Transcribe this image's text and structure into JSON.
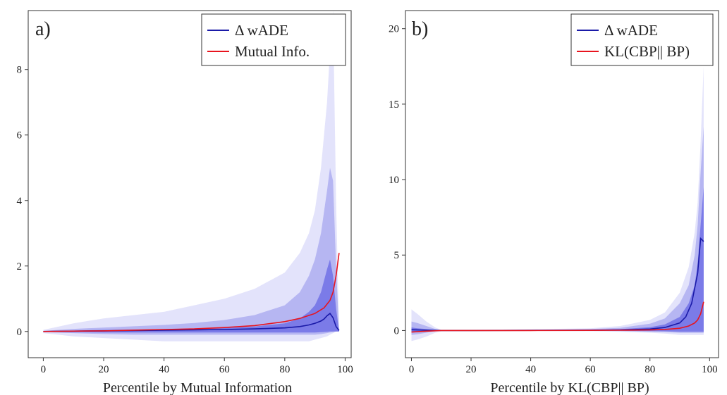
{
  "chart_data": [
    {
      "type": "area",
      "panel_label": "a)",
      "title": "",
      "xlabel": "Percentile by Mutual Information",
      "ylabel": "",
      "xlim": [
        -5,
        102
      ],
      "ylim": [
        -0.8,
        9.8
      ],
      "xticks": [
        0,
        20,
        40,
        60,
        80,
        100
      ],
      "xtick_labels": [
        "0",
        "20",
        "40",
        "60",
        "80",
        "100"
      ],
      "yticks": [
        0,
        2,
        4,
        6,
        8
      ],
      "ytick_labels": [
        "0",
        "2",
        "4",
        "6",
        "8"
      ],
      "grid": false,
      "legend": {
        "position": "top-right",
        "entries": [
          "Δ wADE",
          "Mutual Info."
        ]
      },
      "x": [
        0,
        10,
        20,
        30,
        40,
        50,
        60,
        70,
        80,
        85,
        88,
        90,
        92,
        94,
        95,
        96,
        97,
        98
      ],
      "bands": [
        {
          "level": "outer",
          "color": "#e3e3fb",
          "lower": [
            -0.05,
            -0.15,
            -0.2,
            -0.25,
            -0.3,
            -0.3,
            -0.3,
            -0.3,
            -0.3,
            -0.3,
            -0.3,
            -0.25,
            -0.2,
            -0.15,
            -0.1,
            -0.05,
            0,
            0
          ],
          "upper": [
            0.05,
            0.25,
            0.4,
            0.5,
            0.6,
            0.8,
            1.0,
            1.3,
            1.8,
            2.4,
            3.0,
            3.7,
            5.0,
            7.0,
            8.6,
            9.8,
            4.0,
            0
          ]
        },
        {
          "level": "middle",
          "color": "#b6b6f2",
          "lower": [
            -0.02,
            -0.05,
            -0.08,
            -0.1,
            -0.1,
            -0.1,
            -0.1,
            -0.1,
            -0.1,
            -0.1,
            -0.1,
            -0.1,
            -0.08,
            -0.05,
            -0.03,
            -0.02,
            0,
            0
          ],
          "upper": [
            0.02,
            0.08,
            0.12,
            0.16,
            0.2,
            0.26,
            0.35,
            0.5,
            0.8,
            1.2,
            1.7,
            2.2,
            3.0,
            4.3,
            5.0,
            4.6,
            2.0,
            0
          ]
        },
        {
          "level": "inner",
          "color": "#7b7be8",
          "lower": [
            -0.01,
            -0.02,
            -0.03,
            -0.03,
            -0.03,
            -0.03,
            -0.03,
            -0.03,
            -0.03,
            -0.03,
            -0.03,
            -0.03,
            -0.02,
            -0.01,
            0,
            0,
            0,
            0
          ],
          "upper": [
            0.01,
            0.03,
            0.05,
            0.06,
            0.07,
            0.09,
            0.11,
            0.15,
            0.25,
            0.4,
            0.6,
            0.8,
            1.2,
            1.9,
            2.2,
            1.7,
            0.7,
            0
          ]
        }
      ],
      "series": [
        {
          "name": "Δ wADE",
          "color": "#1a1aa8",
          "x": [
            0,
            10,
            20,
            30,
            40,
            50,
            60,
            70,
            80,
            85,
            88,
            90,
            92,
            93,
            94,
            95,
            96,
            97,
            98
          ],
          "values": [
            0,
            0.01,
            0.02,
            0.03,
            0.04,
            0.05,
            0.06,
            0.08,
            0.11,
            0.15,
            0.2,
            0.25,
            0.32,
            0.38,
            0.48,
            0.55,
            0.42,
            0.15,
            0.03
          ]
        },
        {
          "name": "Mutual Info.",
          "color": "#e8141e",
          "x": [
            0,
            10,
            20,
            30,
            40,
            50,
            60,
            70,
            80,
            85,
            90,
            93,
            95,
            96,
            97,
            98
          ],
          "values": [
            0,
            0.01,
            0.02,
            0.04,
            0.06,
            0.08,
            0.12,
            0.18,
            0.3,
            0.4,
            0.55,
            0.72,
            0.95,
            1.2,
            1.7,
            2.4
          ]
        }
      ]
    },
    {
      "type": "area",
      "panel_label": "b)",
      "title": "",
      "xlabel": "Percentile by KL(CBP|| BP)",
      "ylabel": "",
      "xlim": [
        -2,
        103
      ],
      "ylim": [
        -1.8,
        21.2
      ],
      "xticks": [
        0,
        20,
        40,
        60,
        80,
        100
      ],
      "xtick_labels": [
        "0",
        "20",
        "40",
        "60",
        "80",
        "100"
      ],
      "yticks": [
        0,
        5,
        10,
        15,
        20
      ],
      "ytick_labels": [
        "0",
        "5",
        "10",
        "15",
        "20"
      ],
      "grid": false,
      "legend": {
        "position": "top-right",
        "entries": [
          "Δ wADE",
          "KL(CBP|| BP)"
        ]
      },
      "x": [
        0,
        2,
        5,
        8,
        10,
        20,
        40,
        60,
        70,
        80,
        85,
        90,
        93,
        95,
        96,
        97,
        98
      ],
      "bands": [
        {
          "level": "outer",
          "color": "#e3e3fb",
          "lower": [
            -0.7,
            -0.6,
            -0.4,
            -0.15,
            -0.05,
            -0.03,
            -0.03,
            -0.05,
            -0.08,
            -0.15,
            -0.2,
            -0.3,
            -0.3,
            -0.3,
            -0.3,
            -0.3,
            -0.3
          ],
          "upper": [
            1.4,
            1.1,
            0.6,
            0.2,
            0.05,
            0.05,
            0.08,
            0.15,
            0.3,
            0.7,
            1.2,
            2.5,
            4.2,
            6.5,
            8.5,
            12.5,
            17.5
          ]
        },
        {
          "level": "middle",
          "color": "#b6b6f2",
          "lower": [
            -0.3,
            -0.25,
            -0.15,
            -0.05,
            -0.02,
            -0.01,
            -0.01,
            -0.02,
            -0.04,
            -0.08,
            -0.1,
            -0.15,
            -0.15,
            -0.15,
            -0.15,
            -0.15,
            -0.15
          ],
          "upper": [
            0.6,
            0.5,
            0.3,
            0.1,
            0.03,
            0.03,
            0.05,
            0.1,
            0.18,
            0.45,
            0.8,
            1.8,
            3.0,
            5.0,
            7.0,
            10.5,
            13.5
          ]
        },
        {
          "level": "inner",
          "color": "#7b7be8",
          "lower": [
            -0.1,
            -0.08,
            -0.05,
            -0.02,
            -0.01,
            -0.005,
            -0.005,
            -0.01,
            -0.02,
            -0.04,
            -0.05,
            -0.08,
            -0.08,
            -0.08,
            -0.08,
            -0.08,
            -0.08
          ],
          "upper": [
            0.2,
            0.15,
            0.1,
            0.04,
            0.015,
            0.015,
            0.025,
            0.05,
            0.09,
            0.22,
            0.4,
            0.9,
            1.8,
            3.0,
            4.5,
            7.0,
            9.5
          ]
        }
      ],
      "series": [
        {
          "name": "Δ wADE",
          "color": "#1a1aa8",
          "x": [
            0,
            2,
            5,
            8,
            10,
            20,
            40,
            60,
            70,
            80,
            85,
            90,
            92,
            94,
            96,
            97,
            98
          ],
          "values": [
            0.05,
            0.04,
            0.02,
            0.01,
            0,
            0,
            0.01,
            0.02,
            0.04,
            0.1,
            0.2,
            0.5,
            0.9,
            1.8,
            3.8,
            6.1,
            5.9
          ]
        },
        {
          "name": "KL(CBP|| BP)",
          "color": "#e8141e",
          "x": [
            0,
            2,
            5,
            8,
            10,
            20,
            40,
            60,
            70,
            80,
            85,
            90,
            93,
            95,
            96,
            97,
            98
          ],
          "values": [
            -0.1,
            -0.08,
            -0.04,
            -0.02,
            0,
            0,
            0,
            0.01,
            0.02,
            0.04,
            0.07,
            0.15,
            0.3,
            0.5,
            0.7,
            1.1,
            1.9
          ]
        }
      ]
    }
  ]
}
